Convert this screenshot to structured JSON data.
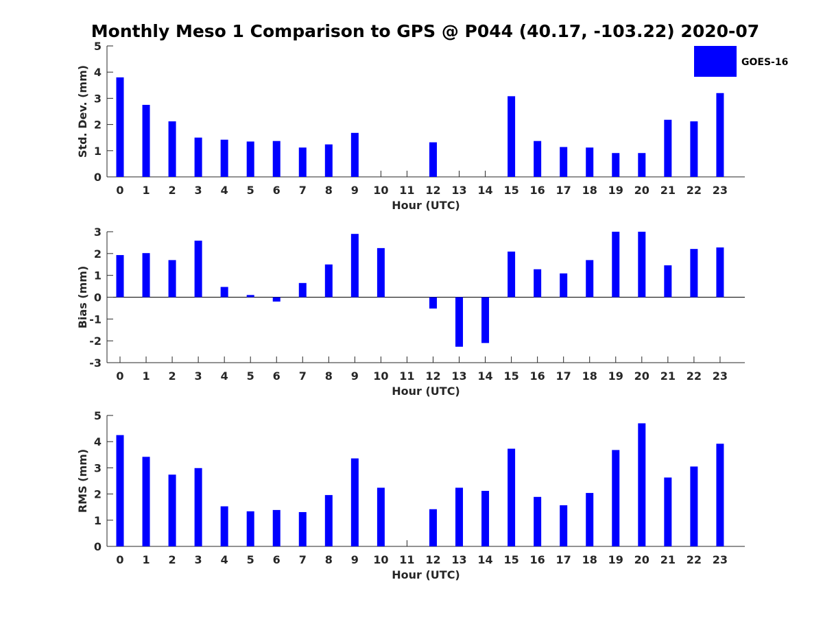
{
  "figure": {
    "title": "Monthly Meso 1 Comparison to GPS @ P044 (40.17, -103.22) 2020-07",
    "legend": {
      "label": "GOES-16",
      "color": "#0000ff",
      "placement": "top-right"
    },
    "bar_color": "#0000ff"
  },
  "chart_data": [
    {
      "type": "bar",
      "xlabel": "Hour (UTC)",
      "ylabel": "Std. Dev. (mm)",
      "ylim": [
        0,
        5
      ],
      "yticks": [
        0,
        1,
        2,
        3,
        4,
        5
      ],
      "categories": [
        "0",
        "1",
        "2",
        "3",
        "4",
        "5",
        "6",
        "7",
        "8",
        "9",
        "10",
        "11",
        "12",
        "13",
        "14",
        "15",
        "16",
        "17",
        "18",
        "19",
        "20",
        "21",
        "22",
        "23"
      ],
      "series": [
        {
          "name": "GOES-16",
          "values": [
            3.8,
            2.75,
            2.12,
            1.5,
            1.42,
            1.35,
            1.37,
            1.12,
            1.24,
            1.68,
            null,
            null,
            1.32,
            null,
            null,
            3.08,
            1.37,
            1.14,
            1.12,
            0.91,
            0.91,
            2.18,
            2.12,
            3.2
          ]
        }
      ],
      "grid": false
    },
    {
      "type": "bar",
      "xlabel": "Hour (UTC)",
      "ylabel": "Bias (mm)",
      "ylim": [
        -3,
        3
      ],
      "yticks": [
        -3,
        -2,
        -1,
        0,
        1,
        2,
        3
      ],
      "categories": [
        "0",
        "1",
        "2",
        "3",
        "4",
        "5",
        "6",
        "7",
        "8",
        "9",
        "10",
        "11",
        "12",
        "13",
        "14",
        "15",
        "16",
        "17",
        "18",
        "19",
        "20",
        "21",
        "22",
        "23"
      ],
      "series": [
        {
          "name": "GOES-16",
          "values": [
            1.93,
            2.02,
            1.7,
            2.59,
            0.47,
            0.1,
            -0.2,
            0.65,
            1.5,
            2.9,
            2.25,
            null,
            -0.52,
            -2.27,
            -2.1,
            2.09,
            1.28,
            1.09,
            1.7,
            3.0,
            3.0,
            1.46,
            2.21,
            2.28
          ]
        }
      ],
      "grid": false
    },
    {
      "type": "bar",
      "xlabel": "Hour (UTC)",
      "ylabel": "RMS (mm)",
      "ylim": [
        0,
        5
      ],
      "yticks": [
        0,
        1,
        2,
        3,
        4,
        5
      ],
      "categories": [
        "0",
        "1",
        "2",
        "3",
        "4",
        "5",
        "6",
        "7",
        "8",
        "9",
        "10",
        "11",
        "12",
        "13",
        "14",
        "15",
        "16",
        "17",
        "18",
        "19",
        "20",
        "21",
        "22",
        "23"
      ],
      "series": [
        {
          "name": "GOES-16",
          "values": [
            4.25,
            3.42,
            2.74,
            2.99,
            1.53,
            1.34,
            1.39,
            1.31,
            1.96,
            3.36,
            2.24,
            null,
            1.42,
            2.24,
            2.12,
            3.73,
            1.89,
            1.57,
            2.04,
            3.68,
            4.7,
            2.63,
            3.05,
            3.92
          ]
        }
      ],
      "grid": false
    }
  ]
}
